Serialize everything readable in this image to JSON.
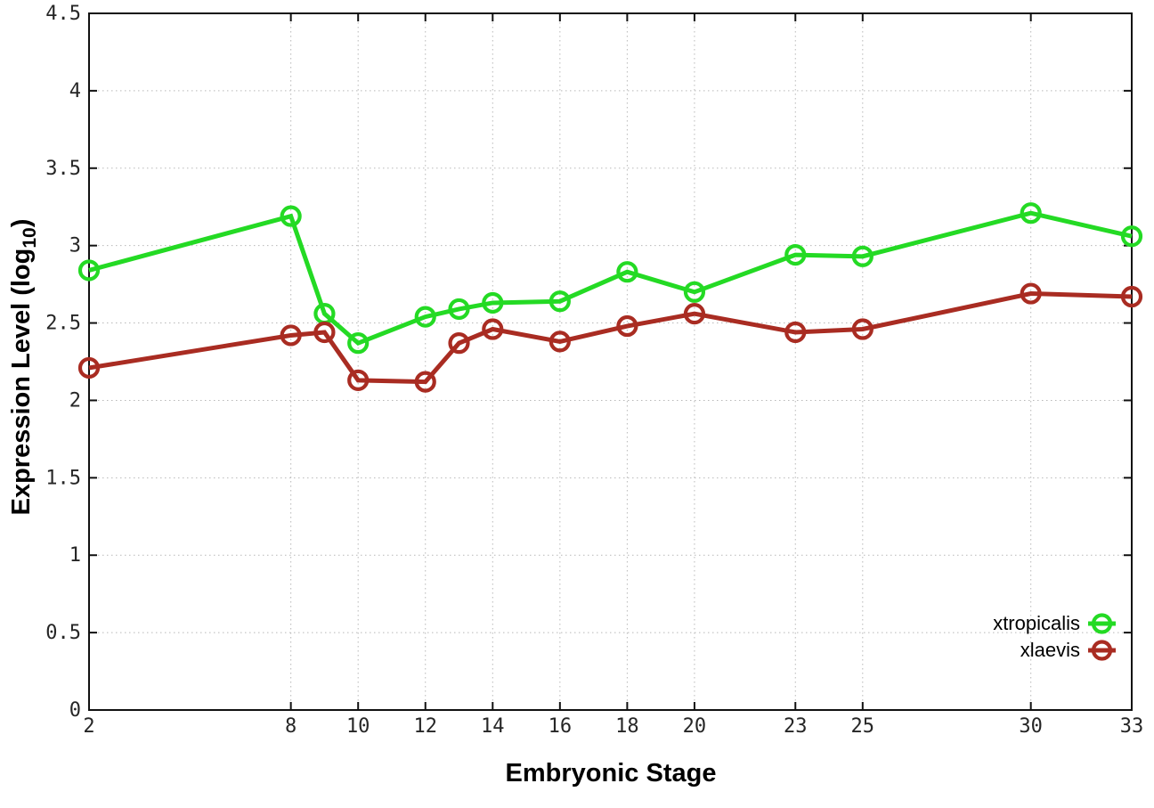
{
  "chart_data": {
    "type": "line",
    "title": "",
    "xlabel": "Embryonic Stage",
    "ylabel": {
      "prefix": "Expression Level (log",
      "sub": "10",
      "suffix": ")"
    },
    "xlim": [
      2,
      33
    ],
    "ylim": [
      0,
      4.5
    ],
    "x_ticks": [
      2,
      8,
      10,
      12,
      14,
      16,
      18,
      20,
      23,
      25,
      30,
      33
    ],
    "x_tick_labels": [
      "2",
      "8",
      "10",
      "12",
      "14",
      "16",
      "18",
      "20",
      "23",
      "25",
      "30",
      "33"
    ],
    "y_ticks": [
      0,
      0.5,
      1,
      1.5,
      2,
      2.5,
      3,
      3.5,
      4,
      4.5
    ],
    "y_tick_labels": [
      "0",
      "0.5",
      "1",
      "1.5",
      "2",
      "2.5",
      "3",
      "3.5",
      "4",
      "4.5"
    ],
    "grid": true,
    "legend_position": "bottom-right",
    "x": [
      2,
      8,
      9,
      10,
      12,
      13,
      14,
      16,
      18,
      20,
      23,
      25,
      30,
      33
    ],
    "series": [
      {
        "name": "xtropicalis",
        "color": "#24da24",
        "values": [
          2.84,
          3.19,
          2.56,
          2.37,
          2.54,
          2.59,
          2.63,
          2.64,
          2.83,
          2.7,
          2.94,
          2.93,
          3.21,
          3.06
        ]
      },
      {
        "name": "xlaevis",
        "color": "#a92c22",
        "values": [
          2.21,
          2.42,
          2.44,
          2.13,
          2.12,
          2.37,
          2.46,
          2.38,
          2.48,
          2.56,
          2.44,
          2.46,
          2.69,
          2.67
        ]
      }
    ],
    "style_colors": {
      "grid": "#b8b8b8",
      "border": "#111111",
      "tick_text": "#262626"
    }
  }
}
